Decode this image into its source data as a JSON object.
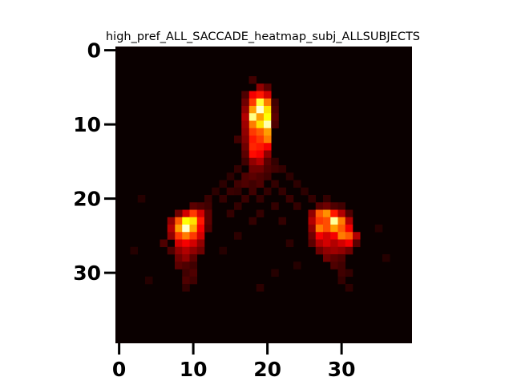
{
  "chart_data": {
    "type": "heatmap",
    "title": "high_pref_ALL_SACCADE_heatmap_subj_ALLSUBJECTS",
    "xlabel": "",
    "ylabel": "",
    "colormap": "hot",
    "rows": 40,
    "cols": 40,
    "xlim": [
      -0.5,
      39.5
    ],
    "ylim": [
      39.5,
      -0.5
    ],
    "x_ticks": [
      0,
      10,
      20,
      30
    ],
    "y_ticks": [
      0,
      10,
      20,
      30
    ],
    "y_axis_inverted": true,
    "grid": false,
    "background_value": 0.0,
    "cells": [
      [
        19,
        5,
        0.2
      ],
      [
        20,
        5,
        0.12
      ],
      [
        18,
        4,
        0.08
      ],
      [
        18,
        6,
        0.35
      ],
      [
        19,
        6,
        0.4
      ],
      [
        20,
        6,
        0.3
      ],
      [
        17,
        6,
        0.1
      ],
      [
        18,
        7,
        0.45
      ],
      [
        19,
        7,
        0.8
      ],
      [
        20,
        7,
        0.55
      ],
      [
        17,
        7,
        0.15
      ],
      [
        21,
        7,
        0.08
      ],
      [
        18,
        8,
        0.6
      ],
      [
        19,
        8,
        0.95
      ],
      [
        20,
        8,
        0.7
      ],
      [
        17,
        8,
        0.2
      ],
      [
        21,
        8,
        0.1
      ],
      [
        18,
        9,
        0.88
      ],
      [
        19,
        9,
        0.6
      ],
      [
        20,
        9,
        0.75
      ],
      [
        17,
        9,
        0.25
      ],
      [
        21,
        9,
        0.12
      ],
      [
        18,
        10,
        0.55
      ],
      [
        19,
        10,
        0.7
      ],
      [
        20,
        10,
        0.92
      ],
      [
        17,
        10,
        0.22
      ],
      [
        21,
        10,
        0.1
      ],
      [
        18,
        11,
        0.45
      ],
      [
        19,
        11,
        0.5
      ],
      [
        20,
        11,
        0.6
      ],
      [
        17,
        11,
        0.2
      ],
      [
        18,
        12,
        0.4
      ],
      [
        19,
        12,
        0.45
      ],
      [
        20,
        12,
        0.55
      ],
      [
        17,
        12,
        0.18
      ],
      [
        16,
        12,
        0.08
      ],
      [
        18,
        13,
        0.42
      ],
      [
        19,
        13,
        0.4
      ],
      [
        20,
        13,
        0.35
      ],
      [
        17,
        13,
        0.15
      ],
      [
        18,
        14,
        0.38
      ],
      [
        19,
        14,
        0.35
      ],
      [
        20,
        14,
        0.2
      ],
      [
        17,
        14,
        0.12
      ],
      [
        18,
        15,
        0.2
      ],
      [
        19,
        15,
        0.25
      ],
      [
        20,
        15,
        0.12
      ],
      [
        17,
        15,
        0.08
      ],
      [
        21,
        15,
        0.06
      ],
      [
        18,
        16,
        0.15
      ],
      [
        19,
        16,
        0.15
      ],
      [
        20,
        16,
        0.1
      ],
      [
        21,
        16,
        0.08
      ],
      [
        16,
        16,
        0.06
      ],
      [
        22,
        16,
        0.06
      ],
      [
        17,
        17,
        0.1
      ],
      [
        18,
        17,
        0.12
      ],
      [
        19,
        17,
        0.1
      ],
      [
        20,
        17,
        0.08
      ],
      [
        15,
        17,
        0.05
      ],
      [
        23,
        17,
        0.05
      ],
      [
        16,
        18,
        0.08
      ],
      [
        17,
        18,
        0.1
      ],
      [
        18,
        18,
        0.08
      ],
      [
        19,
        18,
        0.1
      ],
      [
        21,
        18,
        0.06
      ],
      [
        24,
        18,
        0.05
      ],
      [
        14,
        18,
        0.05
      ],
      [
        15,
        19,
        0.07
      ],
      [
        16,
        19,
        0.06
      ],
      [
        18,
        19,
        0.08
      ],
      [
        20,
        19,
        0.06
      ],
      [
        22,
        19,
        0.06
      ],
      [
        25,
        19,
        0.05
      ],
      [
        13,
        19,
        0.05
      ],
      [
        12,
        20,
        0.07
      ],
      [
        14,
        20,
        0.06
      ],
      [
        17,
        20,
        0.07
      ],
      [
        19,
        20,
        0.06
      ],
      [
        23,
        20,
        0.07
      ],
      [
        26,
        20,
        0.06
      ],
      [
        28,
        20,
        0.06
      ],
      [
        10,
        21,
        0.12
      ],
      [
        11,
        21,
        0.1
      ],
      [
        12,
        21,
        0.08
      ],
      [
        27,
        21,
        0.12
      ],
      [
        28,
        21,
        0.15
      ],
      [
        29,
        21,
        0.1
      ],
      [
        30,
        21,
        0.08
      ],
      [
        16,
        21,
        0.06
      ],
      [
        21,
        21,
        0.06
      ],
      [
        24,
        21,
        0.06
      ],
      [
        9,
        22,
        0.3
      ],
      [
        10,
        22,
        0.45
      ],
      [
        11,
        22,
        0.3
      ],
      [
        8,
        22,
        0.15
      ],
      [
        12,
        22,
        0.12
      ],
      [
        26,
        22,
        0.2
      ],
      [
        27,
        22,
        0.5
      ],
      [
        28,
        22,
        0.58
      ],
      [
        29,
        22,
        0.4
      ],
      [
        30,
        22,
        0.25
      ],
      [
        31,
        22,
        0.1
      ],
      [
        15,
        22,
        0.06
      ],
      [
        19,
        22,
        0.06
      ],
      [
        8,
        23,
        0.5
      ],
      [
        9,
        23,
        0.75
      ],
      [
        10,
        23,
        0.7
      ],
      [
        11,
        23,
        0.4
      ],
      [
        7,
        23,
        0.2
      ],
      [
        12,
        23,
        0.12
      ],
      [
        26,
        23,
        0.25
      ],
      [
        27,
        23,
        0.45
      ],
      [
        28,
        23,
        0.48
      ],
      [
        29,
        23,
        0.9
      ],
      [
        30,
        23,
        0.55
      ],
      [
        31,
        23,
        0.25
      ],
      [
        18,
        23,
        0.06
      ],
      [
        22,
        23,
        0.06
      ],
      [
        8,
        24,
        0.6
      ],
      [
        9,
        24,
        0.95
      ],
      [
        10,
        24,
        0.62
      ],
      [
        11,
        24,
        0.35
      ],
      [
        7,
        24,
        0.25
      ],
      [
        12,
        24,
        0.1
      ],
      [
        26,
        24,
        0.2
      ],
      [
        27,
        24,
        0.55
      ],
      [
        28,
        24,
        0.48
      ],
      [
        29,
        24,
        0.6
      ],
      [
        30,
        24,
        0.5
      ],
      [
        31,
        24,
        0.35
      ],
      [
        8,
        25,
        0.45
      ],
      [
        9,
        25,
        0.55
      ],
      [
        10,
        25,
        0.45
      ],
      [
        11,
        25,
        0.3
      ],
      [
        7,
        25,
        0.2
      ],
      [
        26,
        25,
        0.15
      ],
      [
        27,
        25,
        0.35
      ],
      [
        28,
        25,
        0.3
      ],
      [
        29,
        25,
        0.35
      ],
      [
        30,
        25,
        0.55
      ],
      [
        31,
        25,
        0.5
      ],
      [
        32,
        25,
        0.25
      ],
      [
        8,
        26,
        0.3
      ],
      [
        9,
        26,
        0.35
      ],
      [
        10,
        26,
        0.3
      ],
      [
        11,
        26,
        0.2
      ],
      [
        6,
        26,
        0.1
      ],
      [
        26,
        26,
        0.12
      ],
      [
        27,
        26,
        0.25
      ],
      [
        28,
        26,
        0.3
      ],
      [
        29,
        26,
        0.25
      ],
      [
        30,
        26,
        0.3
      ],
      [
        31,
        26,
        0.35
      ],
      [
        32,
        26,
        0.12
      ],
      [
        8,
        27,
        0.2
      ],
      [
        9,
        27,
        0.25
      ],
      [
        10,
        27,
        0.2
      ],
      [
        11,
        27,
        0.15
      ],
      [
        7,
        27,
        0.1
      ],
      [
        27,
        27,
        0.15
      ],
      [
        28,
        27,
        0.2
      ],
      [
        29,
        27,
        0.22
      ],
      [
        30,
        27,
        0.2
      ],
      [
        31,
        27,
        0.15
      ],
      [
        8,
        28,
        0.15
      ],
      [
        9,
        28,
        0.2
      ],
      [
        10,
        28,
        0.12
      ],
      [
        28,
        28,
        0.15
      ],
      [
        29,
        28,
        0.12
      ],
      [
        30,
        28,
        0.1
      ],
      [
        8,
        29,
        0.12
      ],
      [
        9,
        29,
        0.1
      ],
      [
        10,
        29,
        0.08
      ],
      [
        29,
        29,
        0.1
      ],
      [
        30,
        29,
        0.08
      ],
      [
        9,
        30,
        0.08
      ],
      [
        10,
        30,
        0.1
      ],
      [
        30,
        30,
        0.08
      ],
      [
        31,
        30,
        0.06
      ],
      [
        9,
        31,
        0.1
      ],
      [
        10,
        31,
        0.08
      ],
      [
        30,
        31,
        0.06
      ],
      [
        9,
        32,
        0.06
      ],
      [
        31,
        32,
        0.05
      ],
      [
        19,
        32,
        0.05
      ],
      [
        3,
        20,
        0.04
      ],
      [
        2,
        27,
        0.04
      ],
      [
        35,
        24,
        0.04
      ],
      [
        36,
        28,
        0.04
      ],
      [
        4,
        31,
        0.04
      ],
      [
        24,
        29,
        0.04
      ],
      [
        14,
        27,
        0.04
      ],
      [
        21,
        30,
        0.04
      ],
      [
        16,
        25,
        0.05
      ],
      [
        23,
        26,
        0.05
      ]
    ]
  }
}
